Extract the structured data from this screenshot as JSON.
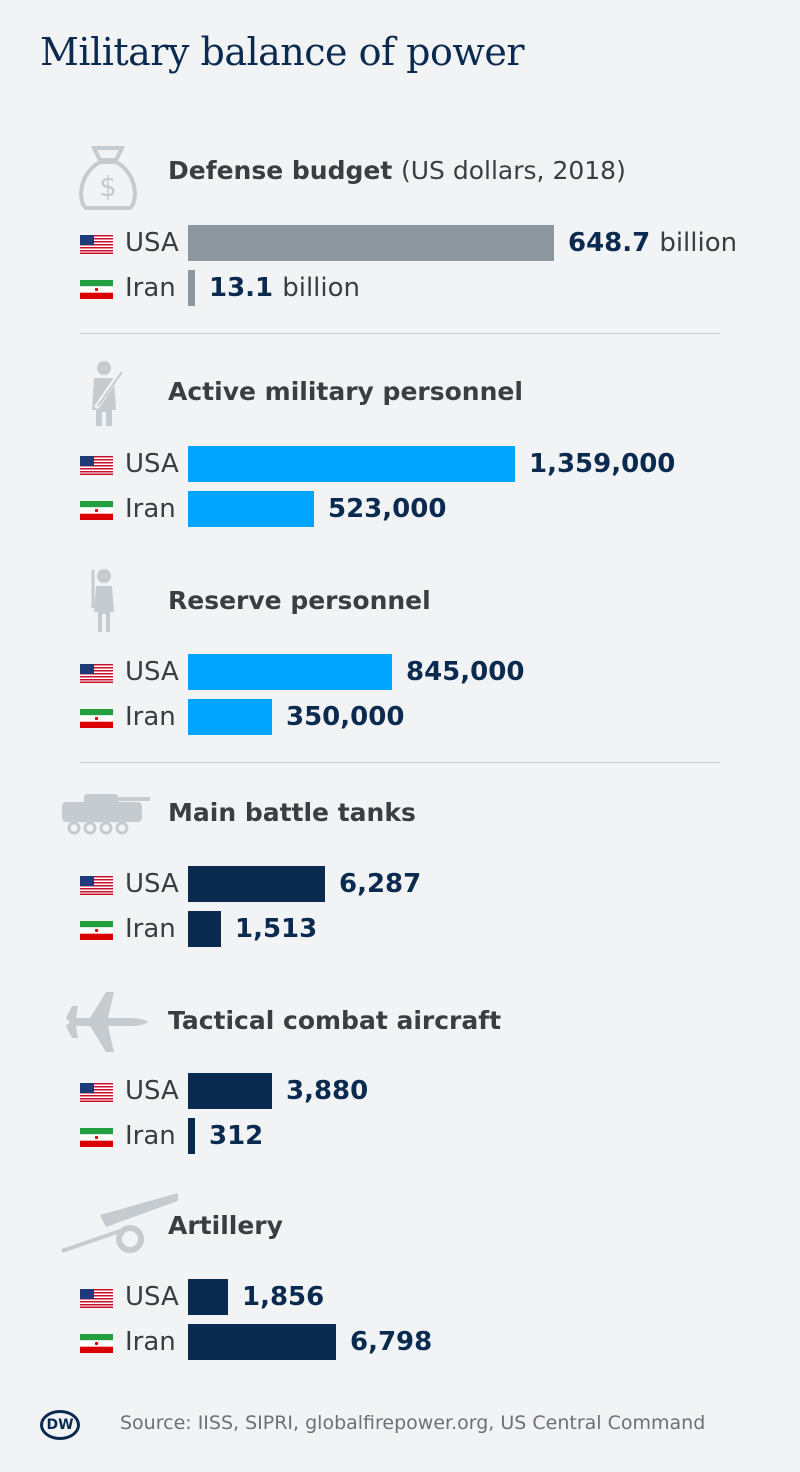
{
  "title": "Military balance of power",
  "source": "Source: IISS, SIPRI, globalfirepower.org, US Central Command",
  "logo_text": "DW",
  "colors": {
    "budget": "#8e979e",
    "personnel": "#00a5ff",
    "equipment": "#0b2a4f",
    "value_text": "#0b2a4f"
  },
  "chart_data": [
    {
      "type": "bar",
      "title": "Defense budget",
      "unit_label": "(US dollars, 2018)",
      "icon": "money-bag-icon",
      "categories": [
        "USA",
        "Iran"
      ],
      "values": [
        648.7,
        13.1
      ],
      "value_labels": [
        "648.7",
        "13.1"
      ],
      "value_suffix": "billion",
      "color": "#8e979e"
    },
    {
      "type": "bar",
      "title": "Active military personnel",
      "icon": "soldier-icon",
      "categories": [
        "USA",
        "Iran"
      ],
      "values": [
        1359000,
        523000
      ],
      "value_labels": [
        "1,359,000",
        "523,000"
      ],
      "color": "#00a5ff"
    },
    {
      "type": "bar",
      "title": "Reserve personnel",
      "icon": "reserve-soldier-icon",
      "categories": [
        "USA",
        "Iran"
      ],
      "values": [
        845000,
        350000
      ],
      "value_labels": [
        "845,000",
        "350,000"
      ],
      "color": "#00a5ff"
    },
    {
      "type": "bar",
      "title": "Main battle tanks",
      "icon": "tank-icon",
      "categories": [
        "USA",
        "Iran"
      ],
      "values": [
        6287,
        1513
      ],
      "value_labels": [
        "6,287",
        "1,513"
      ],
      "color": "#0b2a4f"
    },
    {
      "type": "bar",
      "title": "Tactical combat aircraft",
      "icon": "jet-icon",
      "categories": [
        "USA",
        "Iran"
      ],
      "values": [
        3880,
        312
      ],
      "value_labels": [
        "3,880",
        "312"
      ],
      "color": "#0b2a4f"
    },
    {
      "type": "bar",
      "title": "Artillery",
      "icon": "cannon-icon",
      "categories": [
        "USA",
        "Iran"
      ],
      "values": [
        1856,
        6798
      ],
      "value_labels": [
        "1,856",
        "6,798"
      ],
      "color": "#0b2a4f"
    }
  ]
}
